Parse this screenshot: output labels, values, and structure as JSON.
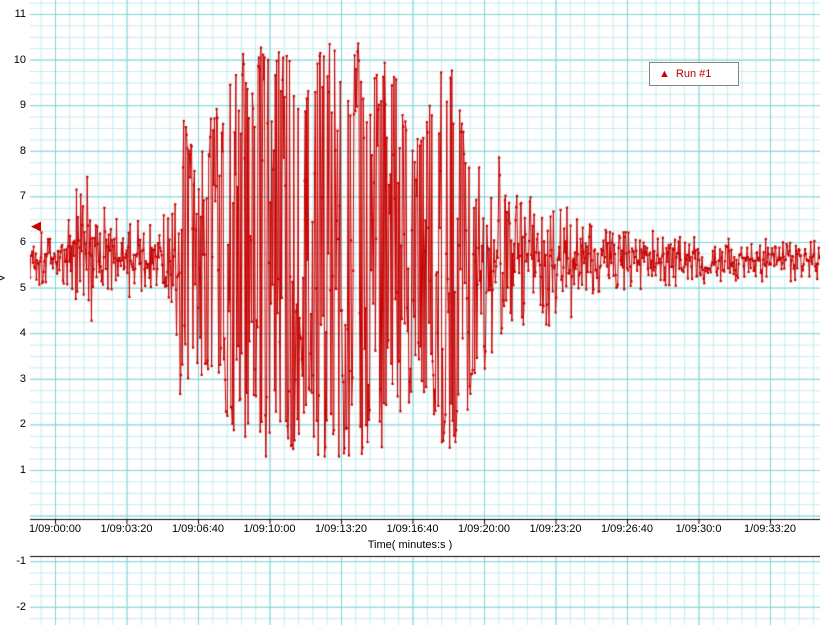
{
  "chart": {
    "ylabel": "V",
    "xlabel": "Time( minutes:s )",
    "legend_label": "Run #1",
    "legend_marker": "triangle-up",
    "trigger_marker": {
      "shape": "triangle-left",
      "value": 6.35
    },
    "y_ticks": [
      11,
      10,
      9,
      8,
      7,
      6,
      5,
      4,
      3,
      2,
      1
    ],
    "y_ticks_lower": [
      -1,
      -2
    ],
    "x_ticks": [
      "1/09:00:00",
      "1/09:03:20",
      "1/09:06:40",
      "1/09:10:00",
      "1/09:13:20",
      "1/09:16:40",
      "1/09:20:00",
      "1/09:23:20",
      "1/09:26:40",
      "1/09:30:0",
      "1/09:33:20"
    ],
    "colors": {
      "trace": "#c80000",
      "grid_minor": "#c6ecee",
      "grid_major": "#7fd6da",
      "axis_line": "#000000",
      "background": "#ffffff"
    }
  },
  "chart_data": {
    "type": "line",
    "title": "",
    "xlabel": "Time( minutes:s )",
    "ylabel": "V",
    "series_name": "Run #1",
    "marker": "dot",
    "x_axis": {
      "unit": "minutes:s since 1/09:00:00",
      "tick_interval_seconds": 200,
      "visible_range_seconds": [
        -70,
        2140
      ]
    },
    "y_axis": {
      "visible_ticks_upper_pane": [
        1,
        11
      ],
      "visible_ticks_lower_pane": [
        -2,
        -1
      ],
      "grid": true
    },
    "baseline_value": 5.65,
    "clip_range": [
      1.3,
      10.4
    ],
    "sample_interval_seconds": 2,
    "amplitude_envelope": [
      {
        "t": -70,
        "mean": 5.65,
        "amp": 0.55
      },
      {
        "t": 0,
        "mean": 5.65,
        "amp": 0.55
      },
      {
        "t": 40,
        "mean": 5.7,
        "amp": 0.95
      },
      {
        "t": 56,
        "mean": 5.9,
        "amp": 1.7
      },
      {
        "t": 80,
        "mean": 5.6,
        "amp": 1.7
      },
      {
        "t": 115,
        "mean": 5.85,
        "amp": 1.35
      },
      {
        "t": 160,
        "mean": 5.7,
        "amp": 0.75
      },
      {
        "t": 260,
        "mean": 5.7,
        "amp": 0.65
      },
      {
        "t": 330,
        "mean": 5.6,
        "amp": 1.1
      },
      {
        "t": 360,
        "mean": 5.6,
        "amp": 3.2
      },
      {
        "t": 395,
        "mean": 5.6,
        "amp": 2.3
      },
      {
        "t": 440,
        "mean": 5.7,
        "amp": 3.1
      },
      {
        "t": 490,
        "mean": 5.75,
        "amp": 3.8
      },
      {
        "t": 530,
        "mean": 5.8,
        "amp": 4.55
      },
      {
        "t": 600,
        "mean": 5.8,
        "amp": 4.6
      },
      {
        "t": 660,
        "mean": 5.8,
        "amp": 4.5
      },
      {
        "t": 700,
        "mean": 5.75,
        "amp": 3.6
      },
      {
        "t": 740,
        "mean": 5.8,
        "amp": 4.6
      },
      {
        "t": 800,
        "mean": 5.8,
        "amp": 4.6
      },
      {
        "t": 860,
        "mean": 5.8,
        "amp": 4.55
      },
      {
        "t": 920,
        "mean": 5.75,
        "amp": 4.3
      },
      {
        "t": 970,
        "mean": 5.7,
        "amp": 3.7
      },
      {
        "t": 1010,
        "mean": 5.65,
        "amp": 2.7
      },
      {
        "t": 1050,
        "mean": 5.7,
        "amp": 3.4
      },
      {
        "t": 1090,
        "mean": 5.8,
        "amp": 4.5
      },
      {
        "t": 1120,
        "mean": 5.7,
        "amp": 4.4
      },
      {
        "t": 1160,
        "mean": 5.6,
        "amp": 3.1
      },
      {
        "t": 1200,
        "mean": 5.6,
        "amp": 2.1
      },
      {
        "t": 1250,
        "mean": 5.7,
        "amp": 1.8
      },
      {
        "t": 1290,
        "mean": 5.8,
        "amp": 1.9
      },
      {
        "t": 1330,
        "mean": 5.7,
        "amp": 1.55
      },
      {
        "t": 1390,
        "mean": 5.7,
        "amp": 1.25
      },
      {
        "t": 1450,
        "mean": 5.65,
        "amp": 1.0
      },
      {
        "t": 1520,
        "mean": 5.6,
        "amp": 0.8
      },
      {
        "t": 1600,
        "mean": 5.6,
        "amp": 0.65
      },
      {
        "t": 1700,
        "mean": 5.6,
        "amp": 0.55
      },
      {
        "t": 1800,
        "mean": 5.6,
        "amp": 0.45
      },
      {
        "t": 1950,
        "mean": 5.6,
        "amp": 0.4
      },
      {
        "t": 2140,
        "mean": 5.6,
        "amp": 0.4
      }
    ]
  }
}
